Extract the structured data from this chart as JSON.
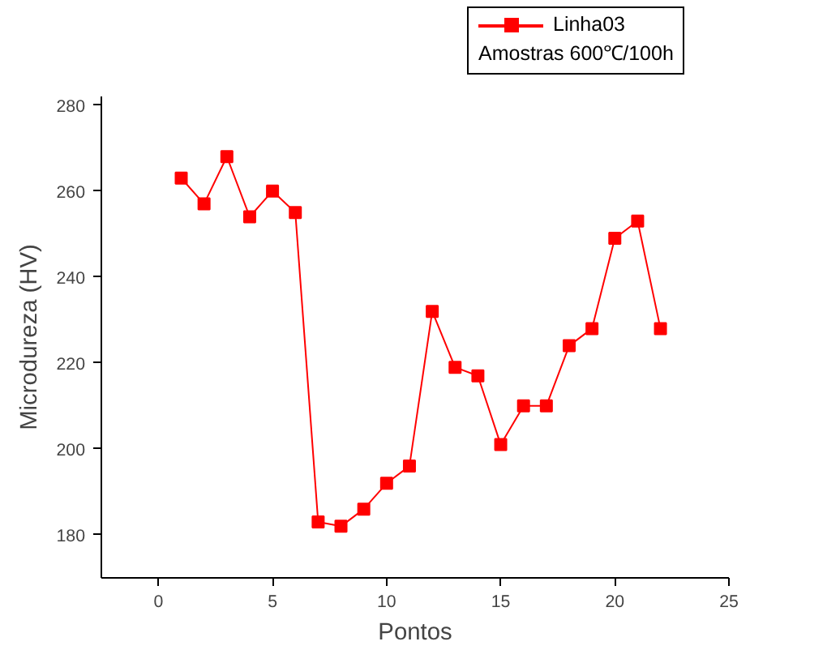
{
  "chart_data": {
    "type": "line",
    "xlabel": "Pontos",
    "ylabel": "Microdureza (HV)",
    "x": [
      1,
      2,
      3,
      4,
      5,
      6,
      7,
      8,
      9,
      10,
      11,
      12,
      13,
      14,
      15,
      16,
      17,
      18,
      19,
      20,
      21,
      22
    ],
    "series": [
      {
        "name": "Linha03",
        "color": "#ff0000",
        "values": [
          263,
          257,
          268,
          254,
          260,
          255,
          183,
          182,
          186,
          192,
          196,
          232,
          219,
          217,
          201,
          210,
          210,
          224,
          228,
          249,
          253,
          228
        ]
      }
    ],
    "annotations": [
      "Amostras 600℃/100h"
    ],
    "xlim": [
      -2.5,
      25
    ],
    "xticks": [
      0,
      5,
      10,
      15,
      20,
      25
    ],
    "ylim": [
      170,
      282
    ],
    "yticks": [
      180,
      200,
      220,
      240,
      260,
      280
    ],
    "marker": "square",
    "line_style": "solid",
    "grid": false,
    "legend": "top right"
  }
}
